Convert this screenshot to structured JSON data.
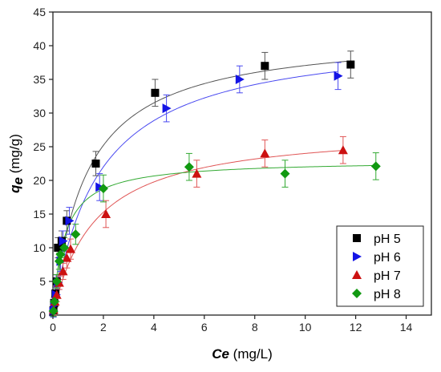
{
  "chart_data": {
    "type": "scatter",
    "xlabel": {
      "symbol": "Ce",
      "unit": " (mg/L)"
    },
    "ylabel": {
      "symbol": "q",
      "subscript": "e",
      "unit": " (mg/g)"
    },
    "xlim": [
      0,
      15
    ],
    "ylim": [
      0,
      45
    ],
    "x_ticks": [
      0,
      2,
      4,
      6,
      8,
      10,
      12,
      14
    ],
    "y_ticks": [
      0,
      5,
      10,
      15,
      20,
      25,
      30,
      35,
      40,
      45
    ],
    "legend_position": "bottom-right",
    "grid": false,
    "series": [
      {
        "name": "pH 5",
        "marker": "square",
        "color": "#000000",
        "curve_color": "#555555",
        "fit": {
          "qmax": 42.0,
          "k": 0.75
        },
        "points": [
          {
            "x": 0.02,
            "y": 0.7,
            "err": 0.8
          },
          {
            "x": 0.05,
            "y": 1.8,
            "err": 0.8
          },
          {
            "x": 0.1,
            "y": 3.2,
            "err": 1.0
          },
          {
            "x": 0.15,
            "y": 5.0,
            "err": 1.0
          },
          {
            "x": 0.2,
            "y": 10.0,
            "err": 1.5
          },
          {
            "x": 0.35,
            "y": 11.0,
            "err": 1.5
          },
          {
            "x": 0.55,
            "y": 14.0,
            "err": 1.5
          },
          {
            "x": 1.7,
            "y": 22.5,
            "err": 1.8
          },
          {
            "x": 4.05,
            "y": 33.0,
            "err": 2.0
          },
          {
            "x": 8.4,
            "y": 37.0,
            "err": 2.0
          },
          {
            "x": 11.8,
            "y": 37.2,
            "err": 2.0
          }
        ]
      },
      {
        "name": "pH 6",
        "marker": "triangle-right",
        "color": "#1414e6",
        "curve_color": "#4a4af0",
        "fit": {
          "qmax": 42.0,
          "k": 0.55
        },
        "points": [
          {
            "x": 0.02,
            "y": 0.5,
            "err": 0.8
          },
          {
            "x": 0.06,
            "y": 1.5,
            "err": 0.8
          },
          {
            "x": 0.12,
            "y": 3.0,
            "err": 1.0
          },
          {
            "x": 0.2,
            "y": 4.8,
            "err": 1.0
          },
          {
            "x": 0.3,
            "y": 8.0,
            "err": 1.5
          },
          {
            "x": 0.4,
            "y": 11.0,
            "err": 1.5
          },
          {
            "x": 0.65,
            "y": 14.0,
            "err": 2.0
          },
          {
            "x": 1.85,
            "y": 19.0,
            "err": 2.0
          },
          {
            "x": 4.5,
            "y": 30.7,
            "err": 2.0
          },
          {
            "x": 7.4,
            "y": 35.0,
            "err": 2.0
          },
          {
            "x": 11.3,
            "y": 35.5,
            "err": 2.0
          }
        ]
      },
      {
        "name": "pH 7",
        "marker": "triangle-up",
        "color": "#cc1111",
        "curve_color": "#e05555",
        "fit": {
          "qmax": 28.0,
          "k": 0.6
        },
        "points": [
          {
            "x": 0.03,
            "y": 0.8,
            "err": 0.8
          },
          {
            "x": 0.08,
            "y": 2.0,
            "err": 0.8
          },
          {
            "x": 0.15,
            "y": 3.0,
            "err": 1.0
          },
          {
            "x": 0.25,
            "y": 4.8,
            "err": 1.0
          },
          {
            "x": 0.4,
            "y": 6.5,
            "err": 1.2
          },
          {
            "x": 0.55,
            "y": 8.5,
            "err": 1.5
          },
          {
            "x": 0.7,
            "y": 9.8,
            "err": 1.5
          },
          {
            "x": 2.1,
            "y": 15.0,
            "err": 2.0
          },
          {
            "x": 5.7,
            "y": 21.0,
            "err": 2.0
          },
          {
            "x": 8.4,
            "y": 24.0,
            "err": 2.0
          },
          {
            "x": 11.5,
            "y": 24.5,
            "err": 2.0
          }
        ]
      },
      {
        "name": "pH 8",
        "marker": "diamond",
        "color": "#119911",
        "curve_color": "#33aa33",
        "fit": {
          "qmax": 23.0,
          "k": 2.2
        },
        "points": [
          {
            "x": 0.02,
            "y": 0.6,
            "err": 0.8
          },
          {
            "x": 0.06,
            "y": 2.0,
            "err": 0.8
          },
          {
            "x": 0.15,
            "y": 5.0,
            "err": 1.0
          },
          {
            "x": 0.25,
            "y": 8.0,
            "err": 1.2
          },
          {
            "x": 0.3,
            "y": 9.0,
            "err": 1.2
          },
          {
            "x": 0.45,
            "y": 10.0,
            "err": 1.5
          },
          {
            "x": 0.9,
            "y": 12.0,
            "err": 1.5
          },
          {
            "x": 2.0,
            "y": 18.8,
            "err": 2.0
          },
          {
            "x": 5.4,
            "y": 22.0,
            "err": 2.0
          },
          {
            "x": 9.2,
            "y": 21.0,
            "err": 2.0
          },
          {
            "x": 12.8,
            "y": 22.1,
            "err": 2.0
          }
        ]
      }
    ]
  }
}
